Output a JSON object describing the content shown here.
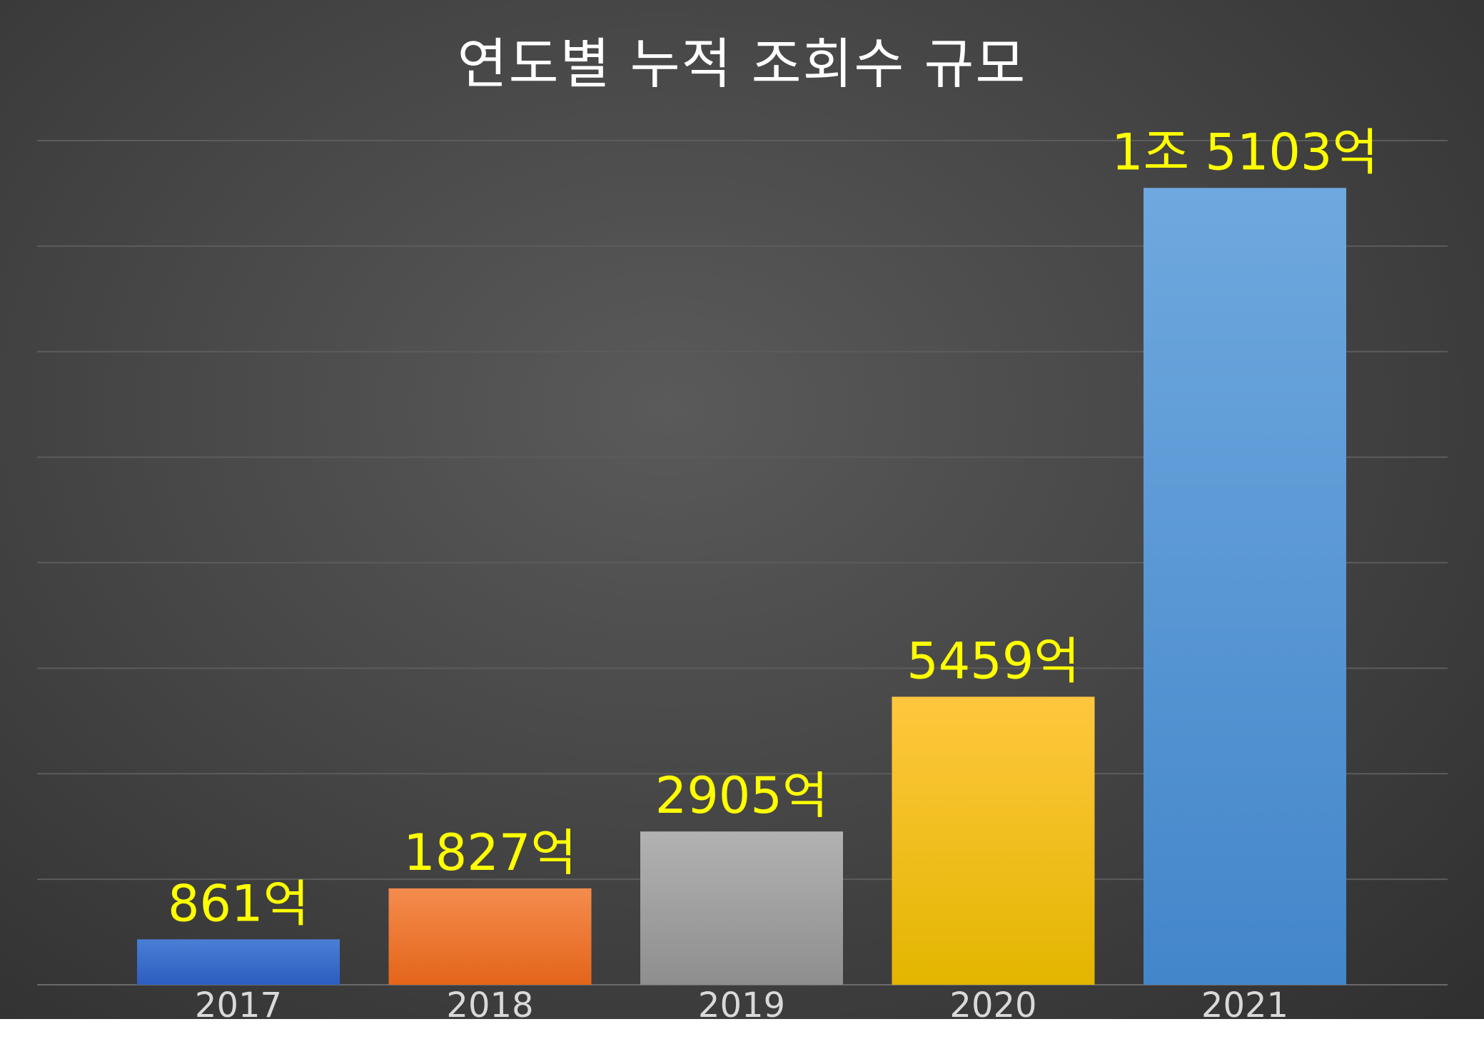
{
  "chart_data": {
    "type": "bar",
    "title": "연도별 누적 조회수 규모",
    "xlabel": "",
    "ylabel": "",
    "categories": [
      "2017",
      "2018",
      "2019",
      "2020",
      "2021"
    ],
    "values": [
      861,
      1827,
      2905,
      5459,
      15103
    ],
    "data_labels": [
      "861억",
      "1827억",
      "2905억",
      "5459억",
      "1조 5103억"
    ],
    "ylim": [
      0,
      16000
    ],
    "grid": true,
    "legend": "none",
    "colors": [
      [
        "#4a7fd6",
        "#2d5cc0"
      ],
      [
        "#f48c4e",
        "#e4651a"
      ],
      [
        "#b2b2b2",
        "#8e8e8e"
      ],
      [
        "#ffc73e",
        "#e3b600"
      ],
      [
        "#6fa8de",
        "#4386ca"
      ]
    ],
    "label_color": "#ffff00"
  }
}
